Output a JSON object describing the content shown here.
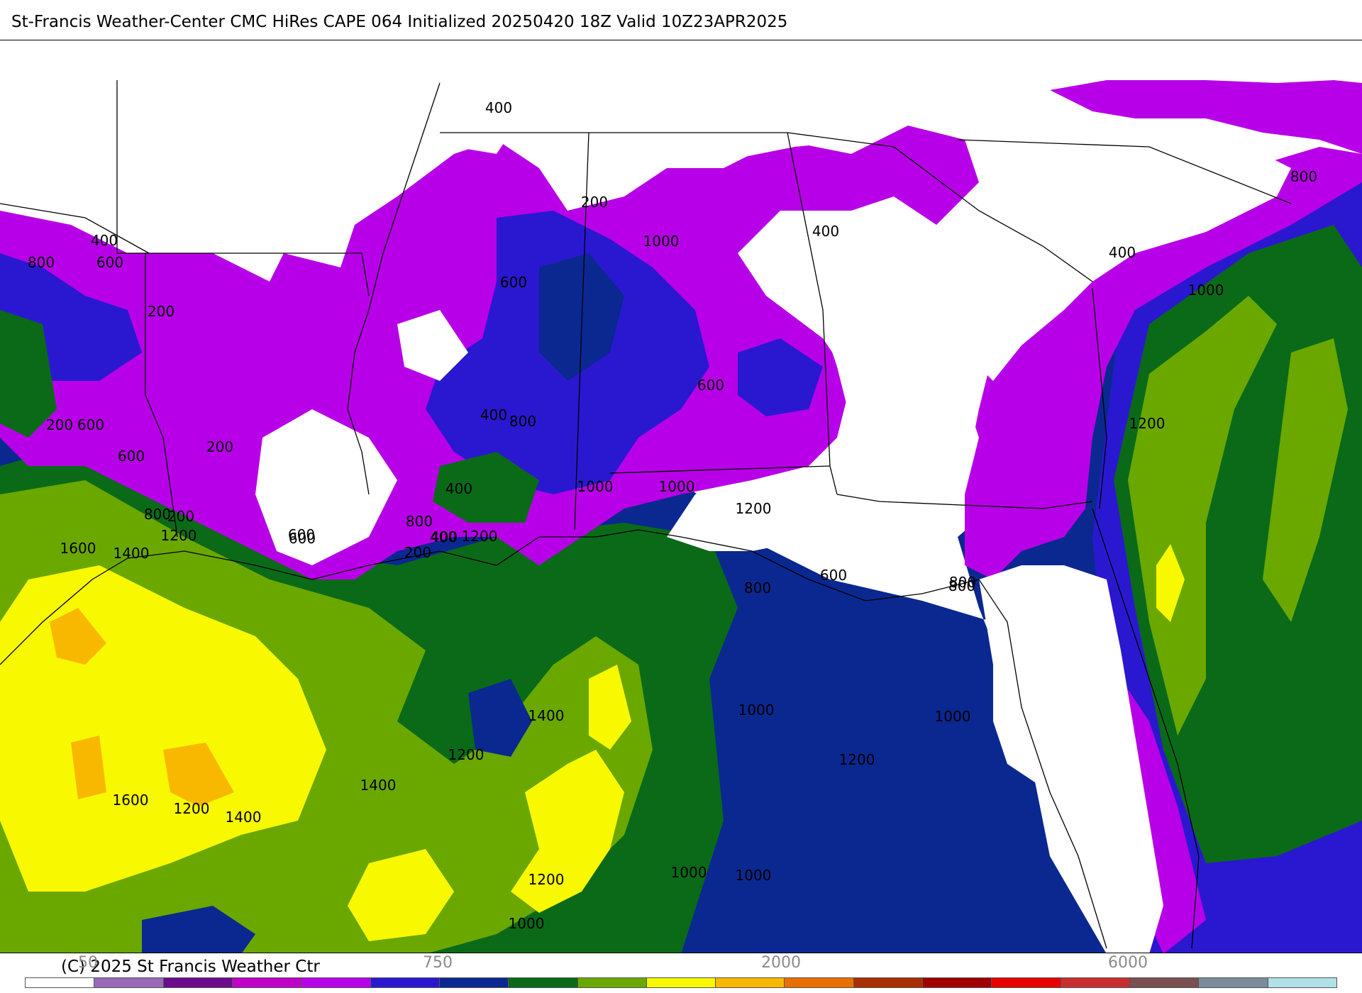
{
  "header": {
    "title": "St-Francis Weather-Center CMC HiRes CAPE  064 Initialized 20250420 18Z Valid 10Z23APR2025"
  },
  "map": {
    "fill_colors": {
      "none": "#ffffff",
      "c100": "#9a6ab8",
      "c250": "#6a0c8c",
      "c500": "#c000c8",
      "c750": "#b800e8",
      "c1000": "#2a18d0",
      "c1250": "#0a2890",
      "c1500": "#0a6a18",
      "c1750": "#6aa800",
      "c2000": "#f8f800",
      "c2500": "#f8b800",
      "c3000": "#e87000"
    },
    "contour_labels": [
      "400",
      "200",
      "600",
      "800",
      "400",
      "200",
      "600",
      "600",
      "200",
      "800",
      "200",
      "1000",
      "1000",
      "1200",
      "1000",
      "200",
      "400",
      "600",
      "400",
      "800",
      "800",
      "400",
      "600",
      "1000",
      "600",
      "400",
      "1000",
      "1200",
      "1600",
      "1400",
      "1200",
      "600",
      "200",
      "400",
      "1200",
      "800",
      "400",
      "1000",
      "800",
      "600",
      "800",
      "1200",
      "800",
      "1000",
      "1400",
      "1200",
      "1400",
      "1600",
      "1200",
      "1400",
      "1200",
      "1000",
      "1000"
    ]
  },
  "footer": {
    "copyright": "(C) 2025 St Francis Weather Ctr",
    "tick_labels": [
      "50",
      "750",
      "2000",
      "6000"
    ]
  },
  "colorbar": {
    "colors": [
      "#ffffff",
      "#9a6ab8",
      "#6a0c8c",
      "#c000c8",
      "#b800e8",
      "#2a18d0",
      "#0a2890",
      "#0a6a18",
      "#6aa800",
      "#f8f800",
      "#f8b800",
      "#e87000",
      "#a83000",
      "#a00000",
      "#e80000",
      "#c83030",
      "#7a5050",
      "#7a8c9c",
      "#b0e0e8"
    ]
  }
}
